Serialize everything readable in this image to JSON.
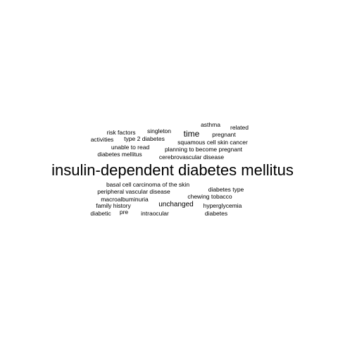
{
  "words": [
    {
      "text": "insulin-dependent diabetes mellitus"
    },
    {
      "text": "asthma"
    },
    {
      "text": "related"
    },
    {
      "text": "risk factors"
    },
    {
      "text": "singleton"
    },
    {
      "text": "time"
    },
    {
      "text": "pregnant"
    },
    {
      "text": "activities"
    },
    {
      "text": "type 2 diabetes"
    },
    {
      "text": "squamous cell skin cancer"
    },
    {
      "text": "unable to read"
    },
    {
      "text": "planning to become pregnant"
    },
    {
      "text": "diabetes mellitus"
    },
    {
      "text": "cerebrovascular disease"
    },
    {
      "text": "basal cell carcinoma of the skin"
    },
    {
      "text": "diabetes type"
    },
    {
      "text": "peripheral vascular disease"
    },
    {
      "text": "chewing tobacco"
    },
    {
      "text": "macroalbuminuria"
    },
    {
      "text": "family history"
    },
    {
      "text": "unchanged"
    },
    {
      "text": "hyperglycemia"
    },
    {
      "text": "diabetic"
    },
    {
      "text": "pre"
    },
    {
      "text": "intraocular"
    },
    {
      "text": "diabetes"
    }
  ]
}
